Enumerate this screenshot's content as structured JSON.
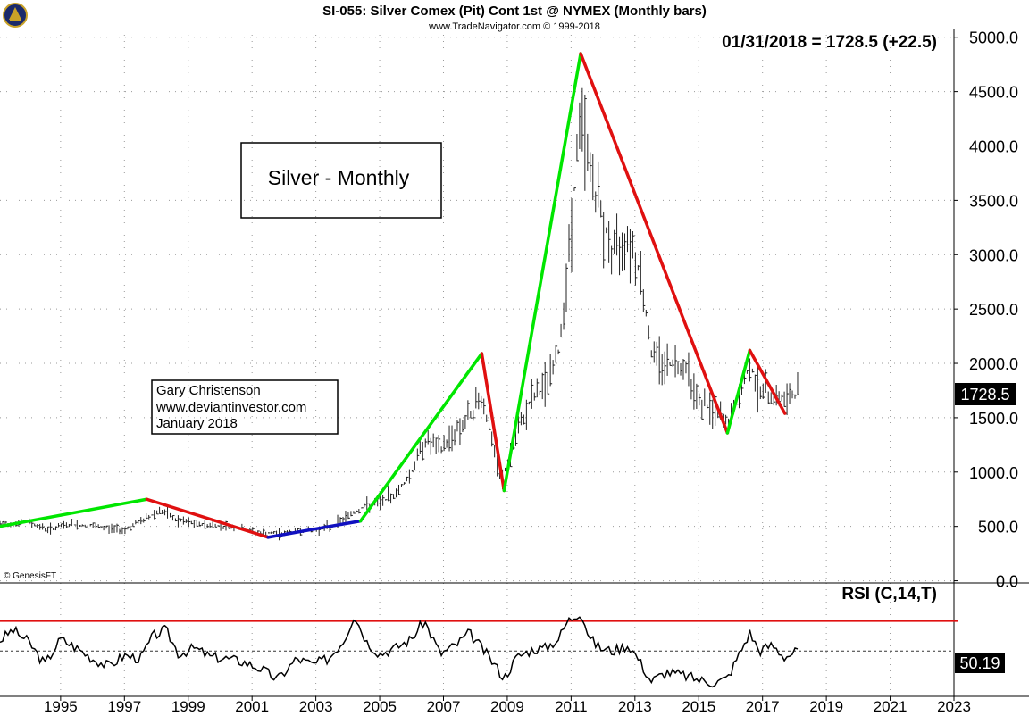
{
  "header": {
    "title": "SI-055:  Silver Comex (Pit) Cont 1st @ NYMEX  (Monthly bars)",
    "subtitle": "www.TradeNavigator.com © 1999-2018",
    "last_quote": "01/31/2018 = 1728.5 (+22.5)",
    "last_price_tag": "1728.5",
    "copyright": "© GenesisFT"
  },
  "annotations": {
    "title_box": "Silver - Monthly",
    "author_lines": [
      "Gary Christenson",
      "www.deviantinvestor.com",
      "January 2018"
    ]
  },
  "colors": {
    "up_trend": "#00e600",
    "down_trend": "#e01010",
    "flat_trend": "#1010c0",
    "bars": "#222222",
    "rsi_line": "#000000",
    "rsi_upper_line": "#e01010",
    "grid": "#999999"
  },
  "chart_data": [
    {
      "type": "line",
      "subtype": "monthly price bars with trend lines",
      "title": "",
      "y_ticks": [
        "0.0",
        "500.0",
        "1000.0",
        "1500.0",
        "2000.0",
        "2500.0",
        "3000.0",
        "3500.0",
        "4000.0",
        "4500.0",
        "5000.0"
      ],
      "x_ticks": [
        "1995",
        "1997",
        "1999",
        "2001",
        "2003",
        "2005",
        "2007",
        "2009",
        "2011",
        "2013",
        "2015",
        "2017",
        "2019",
        "2021",
        "2023"
      ],
      "xlim": [
        1993.1,
        2023.0
      ],
      "ylim": [
        -20,
        5080
      ],
      "grid": true,
      "axis_position": "right",
      "price_path": [
        [
          1993.1,
          520
        ],
        [
          1994.0,
          540
        ],
        [
          1994.6,
          470
        ],
        [
          1995.3,
          520
        ],
        [
          1996.0,
          500
        ],
        [
          1996.6,
          480
        ],
        [
          1997.0,
          470
        ],
        [
          1997.6,
          560
        ],
        [
          1998.1,
          650
        ],
        [
          1998.6,
          560
        ],
        [
          1999.2,
          520
        ],
        [
          1999.8,
          510
        ],
        [
          2000.5,
          490
        ],
        [
          2001.2,
          440
        ],
        [
          2001.9,
          430
        ],
        [
          2002.5,
          460
        ],
        [
          2003.0,
          470
        ],
        [
          2003.5,
          500
        ],
        [
          2004.0,
          600
        ],
        [
          2004.5,
          680
        ],
        [
          2005.0,
          720
        ],
        [
          2005.5,
          800
        ],
        [
          2006.0,
          1000
        ],
        [
          2006.4,
          1300
        ],
        [
          2006.9,
          1200
        ],
        [
          2007.3,
          1350
        ],
        [
          2007.8,
          1500
        ],
        [
          2008.2,
          1700
        ],
        [
          2008.5,
          1300
        ],
        [
          2008.8,
          900
        ],
        [
          2009.2,
          1250
        ],
        [
          2009.7,
          1650
        ],
        [
          2010.2,
          1800
        ],
        [
          2010.6,
          2100
        ],
        [
          2010.9,
          2900
        ],
        [
          2011.3,
          4300
        ],
        [
          2011.6,
          3800
        ],
        [
          2011.9,
          3400
        ],
        [
          2012.3,
          3000
        ],
        [
          2012.8,
          3200
        ],
        [
          2013.2,
          2800
        ],
        [
          2013.5,
          2100
        ],
        [
          2014.0,
          2000
        ],
        [
          2014.6,
          2000
        ],
        [
          2015.0,
          1650
        ],
        [
          2015.5,
          1550
        ],
        [
          2015.9,
          1450
        ],
        [
          2016.3,
          1700
        ],
        [
          2016.6,
          2000
        ],
        [
          2016.9,
          1750
        ],
        [
          2017.4,
          1700
        ],
        [
          2017.7,
          1650
        ],
        [
          2018.1,
          1728.5
        ]
      ],
      "trend_lines": [
        {
          "color": "up_trend",
          "points": [
            [
              1993.1,
              500
            ],
            [
              1997.7,
              750
            ]
          ]
        },
        {
          "color": "down_trend",
          "points": [
            [
              1997.7,
              750
            ],
            [
              2001.5,
              400
            ]
          ]
        },
        {
          "color": "flat_trend",
          "points": [
            [
              2001.5,
              400
            ],
            [
              2004.4,
              550
            ]
          ]
        },
        {
          "color": "up_trend",
          "points": [
            [
              2004.4,
              550
            ],
            [
              2008.2,
              2090
            ]
          ]
        },
        {
          "color": "down_trend",
          "points": [
            [
              2008.2,
              2090
            ],
            [
              2008.9,
              830
            ]
          ]
        },
        {
          "color": "up_trend",
          "points": [
            [
              2008.9,
              830
            ],
            [
              2011.3,
              4850
            ]
          ]
        },
        {
          "color": "down_trend",
          "points": [
            [
              2011.3,
              4850
            ],
            [
              2015.9,
              1360
            ]
          ]
        },
        {
          "color": "up_trend",
          "points": [
            [
              2015.9,
              1360
            ],
            [
              2016.6,
              2120
            ]
          ]
        },
        {
          "color": "down_trend",
          "points": [
            [
              2016.6,
              2120
            ],
            [
              2017.7,
              1540
            ]
          ]
        }
      ],
      "last_value": 1728.5
    },
    {
      "type": "line",
      "title": "RSI (C,14,T)",
      "last_value": 50.19,
      "last_value_label": "50.19",
      "ylim": [
        20,
        95
      ],
      "reference_lines": [
        70,
        50
      ],
      "series": [
        {
          "points": [
            [
              1993.1,
              57
            ],
            [
              1993.5,
              64
            ],
            [
              1994.0,
              56
            ],
            [
              1994.5,
              41
            ],
            [
              1995.0,
              58
            ],
            [
              1995.5,
              52
            ],
            [
              1996.0,
              45
            ],
            [
              1996.5,
              40
            ],
            [
              1997.0,
              47
            ],
            [
              1997.5,
              45
            ],
            [
              1997.9,
              60
            ],
            [
              1998.3,
              64
            ],
            [
              1998.7,
              48
            ],
            [
              1999.2,
              52
            ],
            [
              1999.7,
              46
            ],
            [
              2000.2,
              45
            ],
            [
              2000.7,
              43
            ],
            [
              2001.3,
              38
            ],
            [
              2001.8,
              31
            ],
            [
              2002.4,
              45
            ],
            [
              2002.9,
              41
            ],
            [
              2003.4,
              45
            ],
            [
              2003.9,
              58
            ],
            [
              2004.2,
              74
            ],
            [
              2004.6,
              56
            ],
            [
              2005.0,
              48
            ],
            [
              2005.5,
              52
            ],
            [
              2006.0,
              58
            ],
            [
              2006.4,
              70
            ],
            [
              2006.9,
              48
            ],
            [
              2007.4,
              54
            ],
            [
              2007.8,
              62
            ],
            [
              2008.2,
              52
            ],
            [
              2008.6,
              41
            ],
            [
              2008.9,
              32
            ],
            [
              2009.3,
              46
            ],
            [
              2009.8,
              51
            ],
            [
              2010.2,
              52
            ],
            [
              2010.6,
              58
            ],
            [
              2010.9,
              70
            ],
            [
              2011.3,
              76
            ],
            [
              2011.6,
              58
            ],
            [
              2011.9,
              52
            ],
            [
              2012.3,
              50
            ],
            [
              2012.8,
              54
            ],
            [
              2013.1,
              45
            ],
            [
              2013.5,
              30
            ],
            [
              2014.0,
              36
            ],
            [
              2014.5,
              34
            ],
            [
              2015.0,
              31
            ],
            [
              2015.5,
              29
            ],
            [
              2015.9,
              32
            ],
            [
              2016.2,
              45
            ],
            [
              2016.6,
              62
            ],
            [
              2016.9,
              50
            ],
            [
              2017.3,
              54
            ],
            [
              2017.7,
              46
            ],
            [
              2018.1,
              50.19
            ]
          ]
        }
      ],
      "x_ticks": [
        "1995",
        "1997",
        "1999",
        "2001",
        "2003",
        "2005",
        "2007",
        "2009",
        "2011",
        "2013",
        "2015",
        "2017",
        "2019",
        "2021",
        "2023"
      ],
      "grid": true
    }
  ]
}
